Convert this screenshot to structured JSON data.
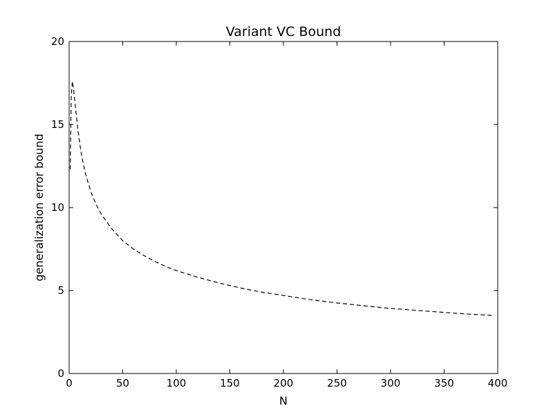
{
  "chart_data": {
    "type": "line",
    "title": "Variant VC Bound",
    "xlabel": "N",
    "ylabel": "generalization error bound",
    "xlim": [
      0,
      400
    ],
    "ylim": [
      0,
      20
    ],
    "xticks": [
      0,
      50,
      100,
      150,
      200,
      250,
      300,
      350,
      400
    ],
    "yticks": [
      0,
      5,
      10,
      15,
      20
    ],
    "grid": false,
    "legend": "none",
    "line_style": "dashed",
    "line_color": "#000000",
    "series": [
      {
        "x": [
          1,
          2,
          3,
          4,
          5,
          6,
          8,
          10,
          12,
          15,
          20,
          25,
          30,
          40,
          50,
          60,
          70,
          80,
          90,
          100,
          120,
          140,
          160,
          180,
          200,
          225,
          250,
          275,
          300,
          325,
          350,
          375,
          396
        ],
        "values": [
          12.3,
          16.7,
          17.6,
          17.2,
          16.6,
          16.0,
          14.8,
          13.8,
          13.0,
          12.1,
          11.0,
          10.2,
          9.6,
          8.7,
          8.0,
          7.5,
          7.1,
          6.75,
          6.45,
          6.2,
          5.8,
          5.45,
          5.15,
          4.9,
          4.7,
          4.45,
          4.25,
          4.08,
          3.92,
          3.8,
          3.68,
          3.57,
          3.5
        ]
      }
    ]
  }
}
